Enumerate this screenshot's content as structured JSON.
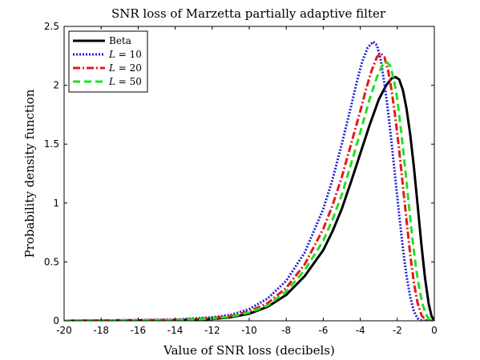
{
  "chart_data": {
    "type": "line",
    "title": "SNR loss of Marzetta partially adaptive filter",
    "xlabel": "Value of SNR loss (decibels)",
    "ylabel": "Probability density function",
    "xlim": [
      -20,
      0
    ],
    "ylim": [
      0,
      2.5
    ],
    "xticks": [
      -20,
      -18,
      -16,
      -14,
      -12,
      -10,
      -8,
      -6,
      -4,
      -2,
      0
    ],
    "yticks": [
      0,
      0.5,
      1,
      1.5,
      2,
      2.5
    ],
    "xtick_labels": [
      "-20",
      "-18",
      "-16",
      "-14",
      "-12",
      "-10",
      "-8",
      "-6",
      "-4",
      "-2",
      "0"
    ],
    "ytick_labels": [
      "0",
      "0.5",
      "1",
      "1.5",
      "2",
      "2.5"
    ],
    "grid": false,
    "legend_position": "top-left",
    "series": [
      {
        "name": "Beta",
        "color": "#000000",
        "style": "solid",
        "x": [
          -20,
          -14,
          -12,
          -11,
          -10,
          -9,
          -8,
          -7,
          -6,
          -5.5,
          -5,
          -4.5,
          -4,
          -3.5,
          -3,
          -2.6,
          -2.3,
          -2.1,
          -1.9,
          -1.7,
          -1.5,
          -1.3,
          -1.1,
          -0.9,
          -0.7,
          -0.5,
          -0.3,
          -0.15,
          0
        ],
        "y": [
          0,
          0.005,
          0.015,
          0.03,
          0.06,
          0.12,
          0.22,
          0.38,
          0.6,
          0.76,
          0.95,
          1.18,
          1.42,
          1.66,
          1.88,
          2.0,
          2.06,
          2.07,
          2.05,
          1.96,
          1.8,
          1.58,
          1.3,
          0.98,
          0.65,
          0.36,
          0.14,
          0.04,
          0
        ]
      },
      {
        "name": "L = 10",
        "label_var": "L",
        "label_value": "10",
        "color": "#1f1fd6",
        "style": "dotted",
        "x": [
          -20,
          -14,
          -12,
          -11,
          -10,
          -9,
          -8,
          -7,
          -6,
          -5.5,
          -5,
          -4.5,
          -4.2,
          -3.9,
          -3.6,
          -3.3,
          -3.1,
          -2.9,
          -2.7,
          -2.5,
          -2.3,
          -2.1,
          -1.9,
          -1.7,
          -1.5,
          -1.3,
          -1.1,
          -0.9,
          -0.7,
          -0.5,
          -0.3,
          0
        ],
        "y": [
          0,
          0.01,
          0.03,
          0.05,
          0.1,
          0.19,
          0.34,
          0.58,
          0.95,
          1.2,
          1.5,
          1.82,
          2.02,
          2.2,
          2.32,
          2.37,
          2.34,
          2.22,
          2.02,
          1.78,
          1.5,
          1.2,
          0.9,
          0.62,
          0.38,
          0.2,
          0.08,
          0.02,
          0.005,
          0,
          0,
          0
        ]
      },
      {
        "name": "L = 20",
        "label_var": "L",
        "label_value": "20",
        "color": "#e41a1a",
        "style": "dashdot",
        "x": [
          -20,
          -14,
          -12,
          -11,
          -10,
          -9,
          -8,
          -7,
          -6,
          -5.5,
          -5,
          -4.5,
          -4,
          -3.7,
          -3.4,
          -3.1,
          -2.9,
          -2.7,
          -2.5,
          -2.3,
          -2.1,
          -1.9,
          -1.7,
          -1.5,
          -1.3,
          -1.1,
          -0.9,
          -0.7,
          -0.5,
          -0.3,
          -0.15,
          0
        ],
        "y": [
          0,
          0.008,
          0.022,
          0.04,
          0.08,
          0.15,
          0.28,
          0.48,
          0.78,
          0.98,
          1.22,
          1.5,
          1.78,
          1.96,
          2.12,
          2.24,
          2.27,
          2.24,
          2.13,
          1.95,
          1.72,
          1.45,
          1.15,
          0.85,
          0.56,
          0.32,
          0.15,
          0.05,
          0.01,
          0,
          0,
          0
        ]
      },
      {
        "name": "L = 50",
        "label_var": "L",
        "label_value": "50",
        "color": "#22e022",
        "style": "dashed",
        "x": [
          -20,
          -14,
          -12,
          -11,
          -10,
          -9,
          -8,
          -7,
          -6,
          -5.5,
          -5,
          -4.5,
          -4,
          -3.5,
          -3.1,
          -2.8,
          -2.6,
          -2.4,
          -2.2,
          -2.0,
          -1.8,
          -1.6,
          -1.4,
          -1.2,
          -1.0,
          -0.8,
          -0.6,
          -0.4,
          -0.25,
          -0.1,
          0
        ],
        "y": [
          0,
          0.006,
          0.018,
          0.035,
          0.07,
          0.13,
          0.25,
          0.43,
          0.68,
          0.86,
          1.07,
          1.33,
          1.6,
          1.88,
          2.07,
          2.17,
          2.2,
          2.17,
          2.06,
          1.88,
          1.62,
          1.33,
          1.02,
          0.72,
          0.46,
          0.26,
          0.12,
          0.04,
          0.01,
          0,
          0
        ]
      }
    ]
  }
}
